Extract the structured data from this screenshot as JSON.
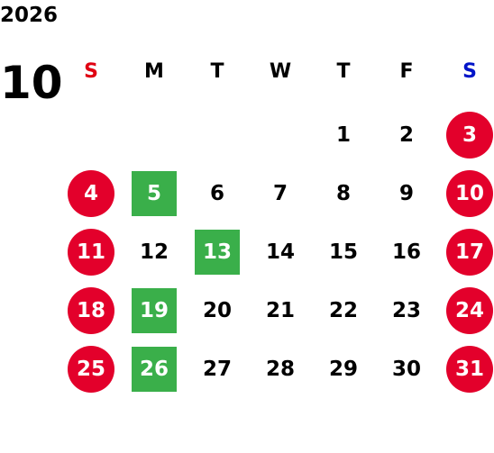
{
  "calendar": {
    "year": "2026",
    "month": "10",
    "weekdays": [
      {
        "label": "S",
        "color": "#e00012"
      },
      {
        "label": "M",
        "color": "#000000"
      },
      {
        "label": "T",
        "color": "#000000"
      },
      {
        "label": "W",
        "color": "#000000"
      },
      {
        "label": "T",
        "color": "#000000"
      },
      {
        "label": "F",
        "color": "#000000"
      },
      {
        "label": "S",
        "color": "#0014c8"
      }
    ],
    "colors": {
      "holiday": "#e3002b",
      "highlight": "#3aaf4a",
      "text": "#000000",
      "on_mark": "#ffffff"
    },
    "weeks": [
      [
        {
          "label": "",
          "style": "blank"
        },
        {
          "label": "",
          "style": "blank"
        },
        {
          "label": "",
          "style": "blank"
        },
        {
          "label": "",
          "style": "blank"
        },
        {
          "label": "1",
          "style": "normal"
        },
        {
          "label": "2",
          "style": "normal"
        },
        {
          "label": "3",
          "style": "holiday"
        }
      ],
      [
        {
          "label": "4",
          "style": "holiday"
        },
        {
          "label": "5",
          "style": "highlight"
        },
        {
          "label": "6",
          "style": "normal"
        },
        {
          "label": "7",
          "style": "normal"
        },
        {
          "label": "8",
          "style": "normal"
        },
        {
          "label": "9",
          "style": "normal"
        },
        {
          "label": "10",
          "style": "holiday"
        }
      ],
      [
        {
          "label": "11",
          "style": "holiday"
        },
        {
          "label": "12",
          "style": "normal"
        },
        {
          "label": "13",
          "style": "highlight"
        },
        {
          "label": "14",
          "style": "normal"
        },
        {
          "label": "15",
          "style": "normal"
        },
        {
          "label": "16",
          "style": "normal"
        },
        {
          "label": "17",
          "style": "holiday"
        }
      ],
      [
        {
          "label": "18",
          "style": "holiday"
        },
        {
          "label": "19",
          "style": "highlight"
        },
        {
          "label": "20",
          "style": "normal"
        },
        {
          "label": "21",
          "style": "normal"
        },
        {
          "label": "22",
          "style": "normal"
        },
        {
          "label": "23",
          "style": "normal"
        },
        {
          "label": "24",
          "style": "holiday"
        }
      ],
      [
        {
          "label": "25",
          "style": "holiday"
        },
        {
          "label": "26",
          "style": "highlight"
        },
        {
          "label": "27",
          "style": "normal"
        },
        {
          "label": "28",
          "style": "normal"
        },
        {
          "label": "29",
          "style": "normal"
        },
        {
          "label": "30",
          "style": "normal"
        },
        {
          "label": "31",
          "style": "holiday"
        }
      ]
    ]
  }
}
